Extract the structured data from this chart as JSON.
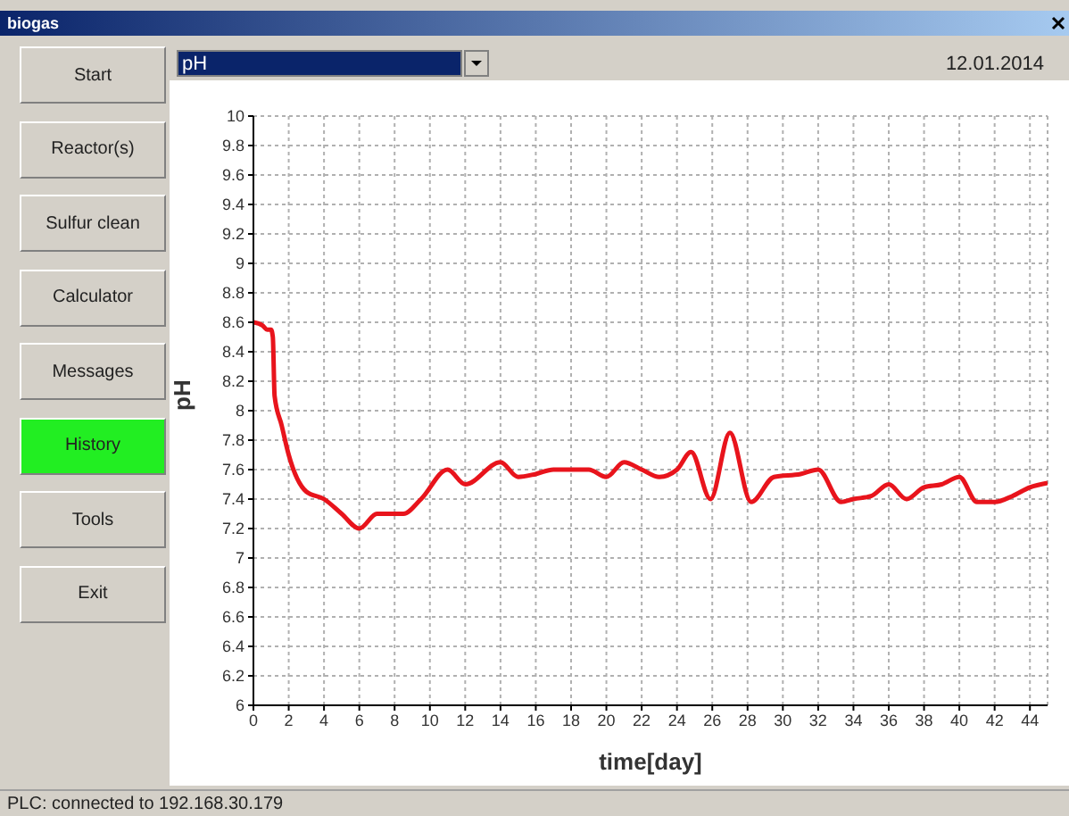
{
  "chart_data": {
    "type": "line",
    "xlabel": "time[day]",
    "ylabel": "pH",
    "annotations": [
      "biogas",
      "Start",
      "Reactor(s)",
      "Sulfur clean",
      "Calculator",
      "Messages",
      "History",
      "Tools",
      "Exit",
      "pH",
      "12.01.2014",
      "PLC: connected to 192.168.30.179"
    ],
    "x": [
      0,
      0.5,
      0.8,
      1,
      1.1,
      1.2,
      1.6,
      2,
      3,
      4,
      5,
      6,
      7,
      8,
      8.5,
      9.5,
      11,
      12,
      14,
      15,
      16,
      17,
      19,
      20,
      21,
      22,
      23,
      24,
      24.8,
      25.9,
      27,
      28.2,
      29.5,
      31,
      32,
      33.3,
      34,
      35,
      36,
      37,
      38,
      39,
      40,
      41,
      42,
      43,
      44,
      45
    ],
    "series": [
      {
        "color": "#e8141c",
        "values": [
          8.6,
          8.58,
          8.55,
          8.55,
          8.5,
          8.1,
          7.9,
          7.7,
          7.45,
          7.4,
          7.3,
          7.2,
          7.3,
          7.3,
          7.3,
          7.4,
          7.6,
          7.5,
          7.65,
          7.55,
          7.57,
          7.6,
          7.6,
          7.55,
          7.65,
          7.6,
          7.55,
          7.6,
          7.72,
          7.4,
          7.85,
          7.38,
          7.55,
          7.57,
          7.6,
          7.38,
          7.4,
          7.42,
          7.5,
          7.4,
          7.48,
          7.5,
          7.55,
          7.38,
          7.38,
          7.42,
          7.48,
          7.51
        ]
      }
    ],
    "xlim": [
      0,
      45
    ],
    "xticks": [
      0,
      2,
      4,
      6,
      8,
      10,
      12,
      14,
      16,
      18,
      20,
      22,
      24,
      26,
      28,
      30,
      32,
      34,
      36,
      38,
      40,
      42,
      44
    ],
    "ylim": [
      6,
      10
    ],
    "yticks": [
      6,
      6.2,
      6.4,
      6.6,
      6.8,
      7,
      7.2,
      7.4,
      7.6,
      7.8,
      8,
      8.2,
      8.4,
      8.6,
      8.8,
      9,
      9.2,
      9.4,
      9.6,
      9.8,
      10
    ],
    "grid": true,
    "marker": "none",
    "line_style": "solid"
  }
}
